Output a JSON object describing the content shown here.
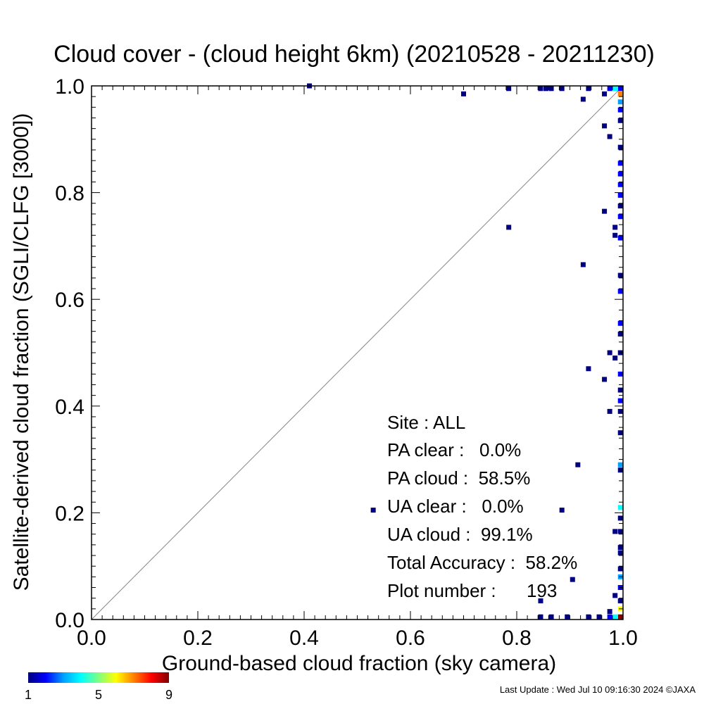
{
  "chart_data": {
    "type": "scatter",
    "title": "Cloud cover - (cloud height 6km)  (20210528 - 20211230)",
    "xlabel": "Ground-based cloud fraction (sky camera)",
    "ylabel": "Satellite-derived cloud fraction (SGLI/CLFG [3000])",
    "xlim": [
      0,
      1
    ],
    "ylim": [
      0,
      1
    ],
    "x_ticks": [
      "0.0",
      "0.2",
      "0.4",
      "0.6",
      "0.8",
      "1.0"
    ],
    "y_ticks": [
      "0.0",
      "0.2",
      "0.4",
      "0.6",
      "0.8",
      "1.0"
    ],
    "grid": false,
    "reference_line": "y = x",
    "colorbar": {
      "min": 1,
      "max": 9,
      "tick_labels": [
        "1",
        "5",
        "9"
      ],
      "colors": [
        "#000080",
        "#0000ff",
        "#00a0ff",
        "#00ffff",
        "#80ff80",
        "#ffff00",
        "#ff8000",
        "#ff0000",
        "#800000"
      ]
    },
    "points": [
      {
        "x": 0.41,
        "y": 1.0,
        "count": 1
      },
      {
        "x": 0.7,
        "y": 0.985,
        "count": 1
      },
      {
        "x": 0.785,
        "y": 0.995,
        "count": 1
      },
      {
        "x": 0.845,
        "y": 0.995,
        "count": 1
      },
      {
        "x": 0.855,
        "y": 0.995,
        "count": 1
      },
      {
        "x": 0.865,
        "y": 0.995,
        "count": 1
      },
      {
        "x": 0.885,
        "y": 0.995,
        "count": 1
      },
      {
        "x": 0.925,
        "y": 0.975,
        "count": 1
      },
      {
        "x": 0.935,
        "y": 0.995,
        "count": 1
      },
      {
        "x": 0.965,
        "y": 0.985,
        "count": 1
      },
      {
        "x": 0.975,
        "y": 0.995,
        "count": 2
      },
      {
        "x": 0.985,
        "y": 0.995,
        "count": 4
      },
      {
        "x": 0.995,
        "y": 0.995,
        "count": 2
      },
      {
        "x": 0.995,
        "y": 0.985,
        "count": 7
      },
      {
        "x": 0.995,
        "y": 0.97,
        "count": 3
      },
      {
        "x": 0.995,
        "y": 0.955,
        "count": 2
      },
      {
        "x": 0.995,
        "y": 0.935,
        "count": 1
      },
      {
        "x": 0.965,
        "y": 0.925,
        "count": 1
      },
      {
        "x": 0.975,
        "y": 0.905,
        "count": 1
      },
      {
        "x": 0.995,
        "y": 0.885,
        "count": 1
      },
      {
        "x": 0.995,
        "y": 0.855,
        "count": 2
      },
      {
        "x": 0.995,
        "y": 0.835,
        "count": 2
      },
      {
        "x": 0.995,
        "y": 0.815,
        "count": 2
      },
      {
        "x": 0.995,
        "y": 0.795,
        "count": 2
      },
      {
        "x": 0.995,
        "y": 0.775,
        "count": 1
      },
      {
        "x": 0.965,
        "y": 0.765,
        "count": 1
      },
      {
        "x": 0.995,
        "y": 0.755,
        "count": 2
      },
      {
        "x": 0.985,
        "y": 0.735,
        "count": 1
      },
      {
        "x": 0.785,
        "y": 0.735,
        "count": 1
      },
      {
        "x": 0.985,
        "y": 0.72,
        "count": 1
      },
      {
        "x": 0.995,
        "y": 0.715,
        "count": 2
      },
      {
        "x": 0.925,
        "y": 0.665,
        "count": 1
      },
      {
        "x": 0.995,
        "y": 0.645,
        "count": 1
      },
      {
        "x": 0.995,
        "y": 0.615,
        "count": 2
      },
      {
        "x": 0.995,
        "y": 0.555,
        "count": 2
      },
      {
        "x": 0.995,
        "y": 0.535,
        "count": 1
      },
      {
        "x": 0.975,
        "y": 0.5,
        "count": 1
      },
      {
        "x": 0.995,
        "y": 0.5,
        "count": 1
      },
      {
        "x": 0.985,
        "y": 0.49,
        "count": 1
      },
      {
        "x": 0.935,
        "y": 0.47,
        "count": 1
      },
      {
        "x": 0.995,
        "y": 0.46,
        "count": 2
      },
      {
        "x": 0.965,
        "y": 0.45,
        "count": 1
      },
      {
        "x": 0.995,
        "y": 0.43,
        "count": 1
      },
      {
        "x": 0.995,
        "y": 0.41,
        "count": 2
      },
      {
        "x": 0.975,
        "y": 0.39,
        "count": 1
      },
      {
        "x": 0.995,
        "y": 0.39,
        "count": 1
      },
      {
        "x": 0.995,
        "y": 0.35,
        "count": 1
      },
      {
        "x": 0.995,
        "y": 0.29,
        "count": 3
      },
      {
        "x": 0.915,
        "y": 0.29,
        "count": 1
      },
      {
        "x": 0.995,
        "y": 0.28,
        "count": 1
      },
      {
        "x": 0.53,
        "y": 0.205,
        "count": 1
      },
      {
        "x": 0.885,
        "y": 0.205,
        "count": 1
      },
      {
        "x": 0.995,
        "y": 0.21,
        "count": 4
      },
      {
        "x": 0.995,
        "y": 0.19,
        "count": 1
      },
      {
        "x": 0.985,
        "y": 0.165,
        "count": 1
      },
      {
        "x": 0.995,
        "y": 0.165,
        "count": 1
      },
      {
        "x": 0.995,
        "y": 0.135,
        "count": 1
      },
      {
        "x": 0.995,
        "y": 0.125,
        "count": 1
      },
      {
        "x": 0.995,
        "y": 0.095,
        "count": 1
      },
      {
        "x": 0.995,
        "y": 0.08,
        "count": 3
      },
      {
        "x": 0.905,
        "y": 0.075,
        "count": 1
      },
      {
        "x": 0.995,
        "y": 0.06,
        "count": 2
      },
      {
        "x": 0.985,
        "y": 0.045,
        "count": 1
      },
      {
        "x": 0.845,
        "y": 0.035,
        "count": 1
      },
      {
        "x": 0.995,
        "y": 0.035,
        "count": 1
      },
      {
        "x": 0.995,
        "y": 0.02,
        "count": 6
      },
      {
        "x": 0.975,
        "y": 0.015,
        "count": 1
      },
      {
        "x": 0.845,
        "y": 0.005,
        "count": 1
      },
      {
        "x": 0.865,
        "y": 0.005,
        "count": 1
      },
      {
        "x": 0.895,
        "y": 0.005,
        "count": 1
      },
      {
        "x": 0.935,
        "y": 0.005,
        "count": 1
      },
      {
        "x": 0.955,
        "y": 0.005,
        "count": 1
      },
      {
        "x": 0.975,
        "y": 0.005,
        "count": 2
      },
      {
        "x": 0.985,
        "y": 0.005,
        "count": 4
      },
      {
        "x": 0.995,
        "y": 0.005,
        "count": 9
      }
    ]
  },
  "stats": {
    "site": "Site : ALL",
    "pa_clear": "PA clear :   0.0%",
    "pa_cloud": "PA cloud :  58.5%",
    "ua_clear": "UA clear :   0.0%",
    "ua_cloud": "UA cloud :  99.1%",
    "total_accuracy": "Total Accuracy :  58.2%",
    "plot_number": "Plot number :      193"
  },
  "footer": {
    "last_update": "Last Update : Wed Jul 10 09:16:30 2024  ©JAXA"
  }
}
